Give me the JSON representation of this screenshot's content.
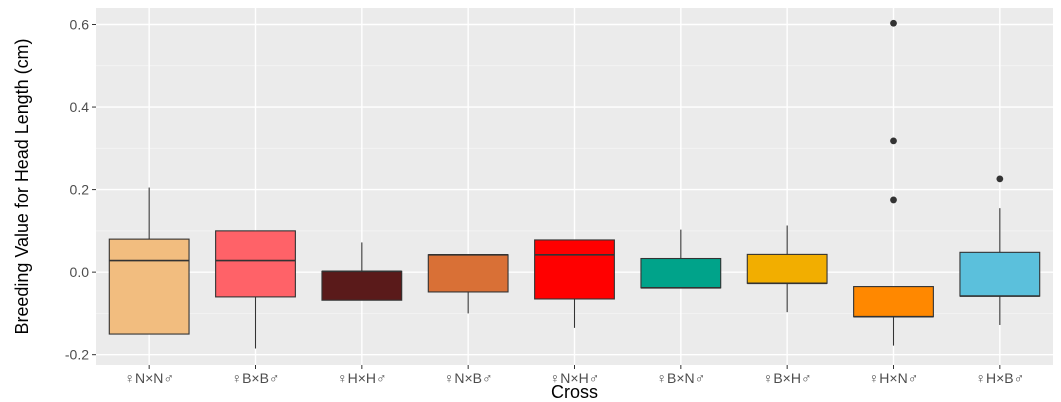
{
  "chart_data": {
    "type": "boxplot",
    "title": "",
    "xlabel": "Cross",
    "ylabel": "Breeding Value for Head Length (cm)",
    "ylim": [
      -0.225,
      0.64
    ],
    "y_ticks": [
      -0.2,
      0.0,
      0.2,
      0.4,
      0.6
    ],
    "y_tick_labels": [
      "-0.2",
      "0.0",
      "0.2",
      "0.4",
      "0.6"
    ],
    "grid": true,
    "legend": "none",
    "categories": [
      "♀N×N♂",
      "♀B×B♂",
      "♀H×H♂",
      "♀N×B♂",
      "♀N×H♂",
      "♀B×N♂",
      "♀B×H♂",
      "♀H×N♂",
      "♀H×B♂"
    ],
    "boxes": [
      {
        "category": "♀N×N♂",
        "whisker_low": -0.15,
        "q1": -0.15,
        "median": 0.028,
        "q3": 0.08,
        "whisker_high": 0.205,
        "outliers": [],
        "color": "#f2bd7f"
      },
      {
        "category": "♀B×B♂",
        "whisker_low": -0.185,
        "q1": -0.06,
        "median": 0.028,
        "q3": 0.1,
        "whisker_high": 0.1,
        "outliers": [],
        "color": "#ff6268"
      },
      {
        "category": "♀H×H♂",
        "whisker_low": -0.068,
        "q1": -0.068,
        "median": 0.002,
        "q3": 0.002,
        "whisker_high": 0.072,
        "outliers": [],
        "color": "#5a1a1a"
      },
      {
        "category": "♀N×B♂",
        "whisker_low": -0.1,
        "q1": -0.048,
        "median": 0.042,
        "q3": 0.042,
        "whisker_high": 0.042,
        "outliers": [],
        "color": "#d97036"
      },
      {
        "category": "♀N×H♂",
        "whisker_low": -0.135,
        "q1": -0.065,
        "median": 0.042,
        "q3": 0.078,
        "whisker_high": 0.078,
        "outliers": [],
        "color": "#ff0000"
      },
      {
        "category": "♀B×N♂",
        "whisker_low": -0.038,
        "q1": -0.038,
        "median": -0.038,
        "q3": 0.033,
        "whisker_high": 0.103,
        "outliers": [],
        "color": "#00a38a"
      },
      {
        "category": "♀B×H♂",
        "whisker_low": -0.097,
        "q1": -0.027,
        "median": -0.027,
        "q3": 0.043,
        "whisker_high": 0.113,
        "outliers": [],
        "color": "#f2ae00"
      },
      {
        "category": "♀H×N♂",
        "whisker_low": -0.178,
        "q1": -0.108,
        "median": -0.108,
        "q3": -0.035,
        "whisker_high": -0.035,
        "outliers": [
          0.175,
          0.318,
          0.603
        ],
        "color": "#ff8800"
      },
      {
        "category": "♀H×B♂",
        "whisker_low": -0.128,
        "q1": -0.058,
        "median": -0.058,
        "q3": 0.048,
        "whisker_high": 0.155,
        "outliers": [
          0.226
        ],
        "color": "#5bc0dc"
      }
    ]
  }
}
